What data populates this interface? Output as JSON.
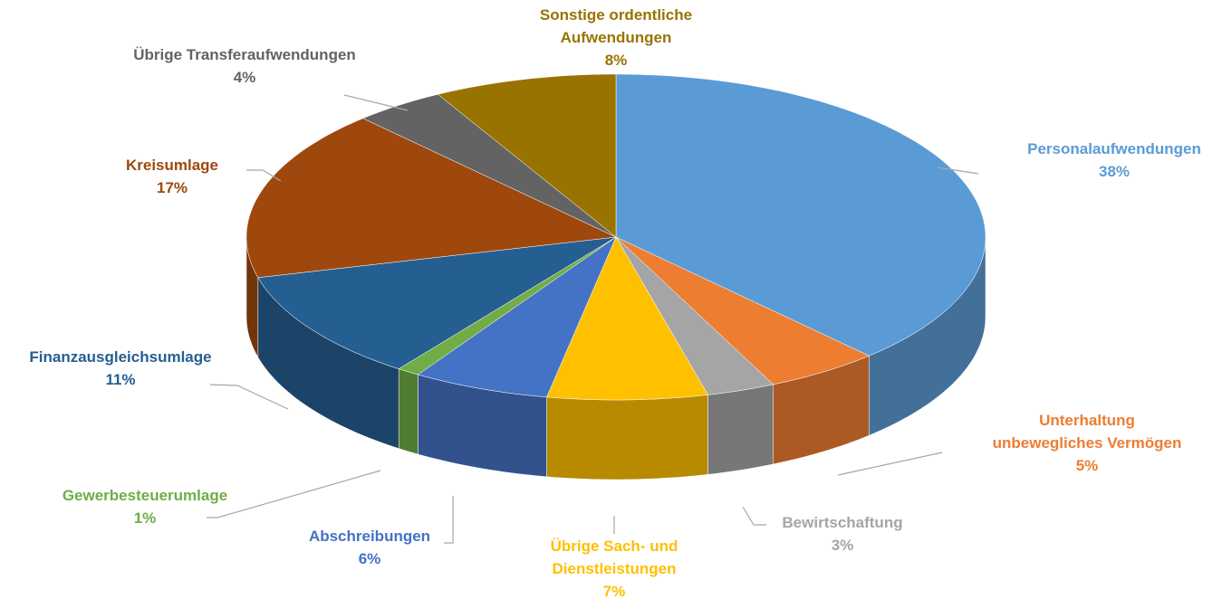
{
  "chart_data": {
    "type": "pie",
    "categories": [
      "Personalaufwendungen",
      "Unterhaltung unbewegliches Vermögen",
      "Bewirtschaftung",
      "Übrige Sach- und Dienstleistungen",
      "Abschreibungen",
      "Gewerbesteuerumlage",
      "Finanzausgleichsumlage",
      "Kreisumlage",
      "Übrige Transferaufwendungen",
      "Sonstige ordentliche Aufwendungen"
    ],
    "values": [
      38,
      5,
      3,
      7,
      6,
      1,
      11,
      17,
      4,
      8
    ],
    "value_labels": [
      "38%",
      "5%",
      "3%",
      "7%",
      "6%",
      "1%",
      "11%",
      "17%",
      "4%",
      "8%"
    ],
    "colors": [
      "#5b9bd5",
      "#ed7d31",
      "#a5a5a5",
      "#ffc000",
      "#4472c4",
      "#70ad47",
      "#255e91",
      "#9e480e",
      "#636363",
      "#997300"
    ]
  }
}
